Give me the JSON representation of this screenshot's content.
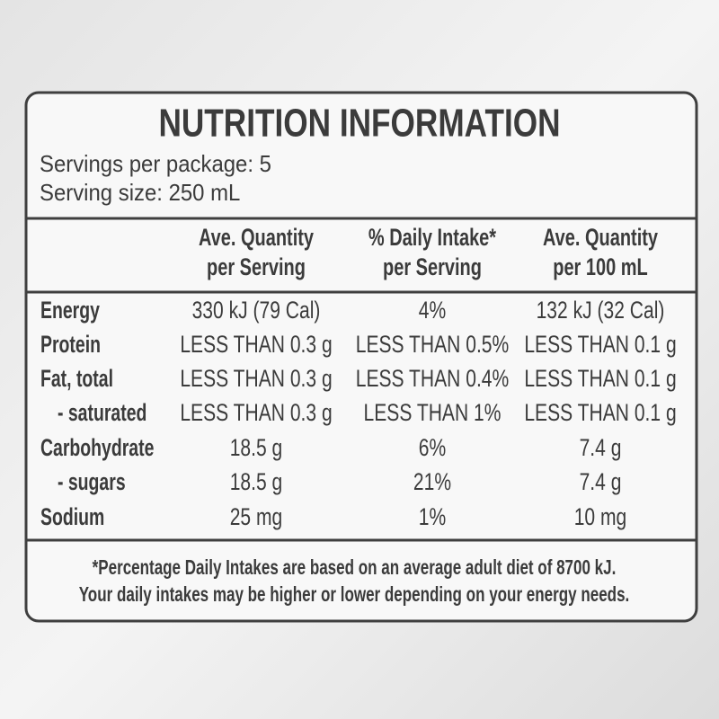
{
  "title": "NUTRITION INFORMATION",
  "servings": [
    "Servings per package: 5",
    "Serving size: 250 mL"
  ],
  "table": {
    "header": [
      [
        "Ave. Quantity",
        "per Serving"
      ],
      [
        "% Daily Intake*",
        "per Serving"
      ],
      [
        "Ave. Quantity",
        "per 100 mL"
      ]
    ],
    "rows": [
      [
        "Energy",
        "330 kJ (79 Cal)",
        "4%",
        "132 kJ (32 Cal)"
      ],
      [
        "Protein",
        "LESS THAN 0.3 g",
        "LESS THAN 0.5%",
        "LESS THAN 0.1 g"
      ],
      [
        "Fat, total",
        "LESS THAN 0.3 g",
        "LESS THAN 0.4%",
        "LESS THAN 0.1 g"
      ],
      [
        "- saturated",
        "LESS THAN 0.3 g",
        "LESS THAN 1%",
        "LESS THAN 0.1 g"
      ],
      [
        "Carbohydrate",
        "18.5 g",
        "6%",
        "7.4 g"
      ],
      [
        "- sugars",
        "18.5 g",
        "21%",
        "7.4 g"
      ],
      [
        "Sodium",
        "25 mg",
        "1%",
        "10 mg"
      ]
    ]
  },
  "footnote": [
    "*Percentage Daily Intakes are based on an average adult diet of 8700 kJ.",
    "Your daily intakes may be higher or lower depending on your energy needs."
  ]
}
